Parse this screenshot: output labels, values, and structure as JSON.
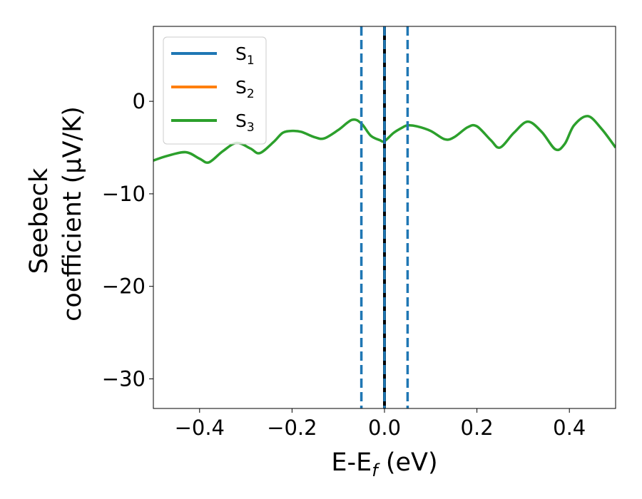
{
  "chart_data": {
    "type": "line",
    "xlabel": {
      "main": "E-E",
      "sub": "f",
      "unit": " (eV)"
    },
    "ylabel": {
      "line1": "Seebeck",
      "line2": "coefficient  (μV/K)"
    },
    "xlim": [
      -0.5,
      0.5
    ],
    "ylim": [
      -33.2,
      8.1
    ],
    "xticks": [
      -0.4,
      -0.2,
      0.0,
      0.2,
      0.4
    ],
    "xtick_labels": [
      "−0.4",
      "−0.2",
      "0.0",
      "0.2",
      "0.4"
    ],
    "yticks": [
      0,
      -10,
      -20,
      -30
    ],
    "ytick_labels": [
      "0",
      "−10",
      "−20",
      "−30"
    ],
    "grid": false,
    "legend_position": "top-left",
    "series": [
      {
        "name": "S",
        "sub": "1",
        "color": "#1f77b4",
        "values": []
      },
      {
        "name": "S",
        "sub": "2",
        "color": "#ff7f0e",
        "values": []
      },
      {
        "name": "S",
        "sub": "3",
        "color": "#2ca02c",
        "x": [
          -0.5,
          -0.47,
          -0.43,
          -0.4,
          -0.38,
          -0.35,
          -0.32,
          -0.29,
          -0.27,
          -0.24,
          -0.22,
          -0.2,
          -0.18,
          -0.15,
          -0.13,
          -0.1,
          -0.07,
          -0.05,
          -0.03,
          -0.01,
          0.0,
          0.02,
          0.04,
          0.05,
          0.07,
          0.1,
          0.13,
          0.15,
          0.18,
          0.2,
          0.23,
          0.25,
          0.28,
          0.31,
          0.34,
          0.37,
          0.39,
          0.41,
          0.44,
          0.47,
          0.5
        ],
        "values": [
          -6.4,
          -5.9,
          -5.5,
          -6.2,
          -6.6,
          -5.4,
          -4.5,
          -5.1,
          -5.6,
          -4.4,
          -3.4,
          -3.2,
          -3.3,
          -3.9,
          -4.0,
          -3.1,
          -2.0,
          -2.4,
          -3.7,
          -4.2,
          -4.3,
          -3.4,
          -2.8,
          -2.6,
          -2.7,
          -3.2,
          -4.1,
          -3.9,
          -2.8,
          -2.7,
          -4.2,
          -5.0,
          -3.4,
          -2.2,
          -3.3,
          -5.2,
          -4.6,
          -2.6,
          -1.6,
          -3.0,
          -5.0
        ]
      }
    ],
    "vlines": [
      {
        "x": -0.05,
        "style": "dashed",
        "color": "#1f77b4"
      },
      {
        "x": 0.0,
        "style": "solid",
        "color": "#000000"
      },
      {
        "x": 0.0,
        "style": "dashed",
        "color": "#1f77b4"
      },
      {
        "x": 0.05,
        "style": "dashed",
        "color": "#1f77b4"
      }
    ]
  }
}
